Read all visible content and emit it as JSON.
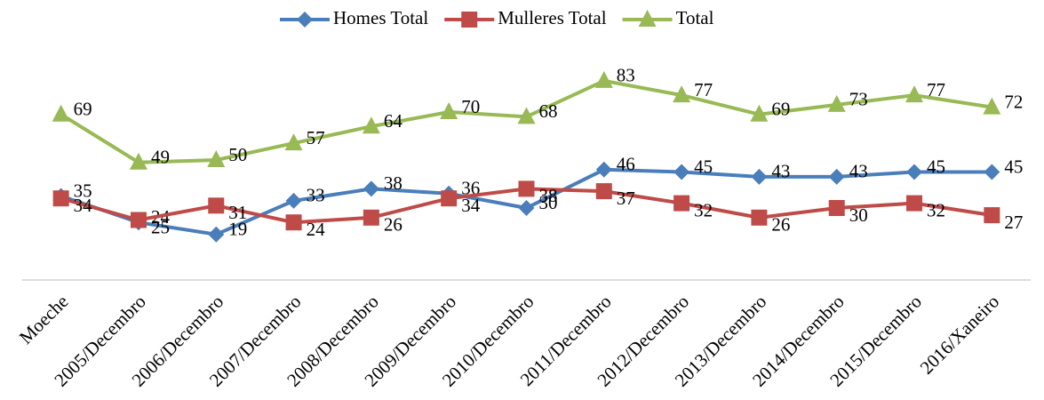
{
  "chart_data": {
    "type": "line",
    "categories": [
      "Moeche",
      "2005/Decembro",
      "2006/Decembro",
      "2007/Decembro",
      "2008/Decembro",
      "2009/Decembro",
      "2010/Decembro",
      "2011/Decembro",
      "2012/Decembro",
      "2013/Decembro",
      "2014/Decembro",
      "2015/Decembro",
      "2016/Xaneiro"
    ],
    "series": [
      {
        "name": "Homes Total",
        "color": "#4a7ebb",
        "marker": "diamond",
        "values": [
          35,
          24,
          19,
          33,
          38,
          36,
          30,
          46,
          45,
          43,
          43,
          45,
          45
        ]
      },
      {
        "name": "Mulleres Total",
        "color": "#be4b48",
        "marker": "square",
        "values": [
          34,
          25,
          31,
          24,
          26,
          34,
          38,
          37,
          32,
          26,
          30,
          32,
          27
        ]
      },
      {
        "name": "Total",
        "color": "#98b954",
        "marker": "triangle",
        "values": [
          69,
          49,
          50,
          57,
          64,
          70,
          68,
          83,
          77,
          69,
          73,
          77,
          72
        ]
      }
    ],
    "ylim": [
      0,
      100
    ],
    "legend": "top"
  }
}
